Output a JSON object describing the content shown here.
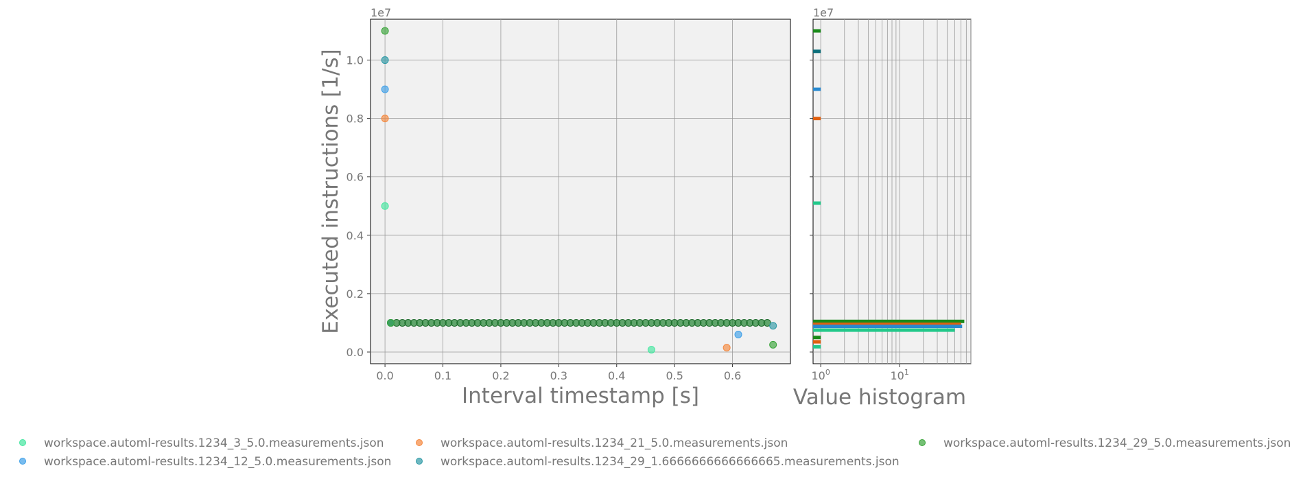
{
  "chart_data": [
    {
      "type": "scatter",
      "xlabel": "Interval timestamp [s]",
      "ylabel": "Executed instructions [1/s]",
      "y_multiplier_label": "1e7",
      "xlim": [
        -0.025,
        0.7
      ],
      "ylim": [
        -0.04,
        1.14
      ],
      "y_unit_scale": 10000000,
      "x_ticks": [
        "0.0",
        "0.1",
        "0.2",
        "0.3",
        "0.4",
        "0.5",
        "0.6"
      ],
      "y_ticks": [
        "0.0",
        "0.2",
        "0.4",
        "0.6",
        "0.8",
        "1.0"
      ],
      "grid": true,
      "legend": "bottom",
      "series": [
        {
          "name": "workspace.automl-results.1234_3_5.0.measurements.json",
          "color": "#45e6a0",
          "points": [
            [
              0.0,
              0.5
            ],
            [
              0.01,
              0.1
            ],
            [
              0.46,
              0.008
            ]
          ]
        },
        {
          "name": "workspace.automl-results.1234_21_5.0.measurements.json",
          "color": "#f5883e",
          "points": [
            [
              0.0,
              0.8
            ],
            [
              0.01,
              0.1
            ],
            [
              0.59,
              0.015
            ]
          ]
        },
        {
          "name": "workspace.automl-results.1234_12_5.0.measurements.json",
          "color": "#3fa0e8",
          "points": [
            [
              0.0,
              0.9
            ],
            [
              0.01,
              0.1
            ],
            [
              0.61,
              0.06
            ]
          ]
        },
        {
          "name": "workspace.automl-results.1234_29_1.6666666666666665.measurements.json",
          "color": "#2f9aa6",
          "points": [
            [
              0.0,
              1.0
            ],
            [
              0.01,
              0.1
            ],
            [
              0.67,
              0.09
            ]
          ]
        },
        {
          "name": "workspace.automl-results.1234_29_5.0.measurements.json",
          "color": "#3aa53a",
          "points": [
            [
              0.0,
              1.1
            ],
            [
              0.01,
              0.1
            ],
            [
              0.67,
              0.025
            ]
          ]
        }
      ],
      "constant_run": {
        "y": 0.1,
        "x_start": 0.01,
        "x_end": 0.66,
        "step": 0.01,
        "color": "#2e8b3e"
      }
    },
    {
      "type": "bar",
      "orientation": "horizontal",
      "xlabel": "Value histogram",
      "x_scale": "log",
      "x_ticks": [
        "10^0",
        "10^1"
      ],
      "y_multiplier_label": "1e7",
      "grid": true,
      "bars": [
        {
          "y": 1.1,
          "count": 1,
          "color": "#1a8a1a"
        },
        {
          "y": 1.03,
          "count": 1,
          "color": "#0d6f7a"
        },
        {
          "y": 0.9,
          "count": 1,
          "color": "#2a8ad0"
        },
        {
          "y": 0.8,
          "count": 1,
          "color": "#e06010"
        },
        {
          "y": 0.51,
          "count": 1,
          "color": "#22c88a"
        },
        {
          "y": 0.105,
          "count": 66,
          "color": "#1a8a1a"
        },
        {
          "y": 0.095,
          "count": 60,
          "color": "#e06010"
        },
        {
          "y": 0.088,
          "count": 62,
          "color": "#2a8ad0"
        },
        {
          "y": 0.075,
          "count": 50,
          "color": "#22c88a"
        },
        {
          "y": 0.05,
          "count": 1,
          "color": "#1a8a1a"
        },
        {
          "y": 0.035,
          "count": 1,
          "color": "#e06010"
        },
        {
          "y": 0.018,
          "count": 1,
          "color": "#22c88a"
        }
      ]
    }
  ],
  "legend_items": [
    {
      "label": "workspace.automl-results.1234_3_5.0.measurements.json",
      "color": "#45e6a0"
    },
    {
      "label": "workspace.automl-results.1234_12_5.0.measurements.json",
      "color": "#3fa0e8"
    },
    {
      "label": "workspace.automl-results.1234_21_5.0.measurements.json",
      "color": "#f5883e"
    },
    {
      "label": "workspace.automl-results.1234_29_1.6666666666666665.measurements.json",
      "color": "#2f9aa6"
    },
    {
      "label": "workspace.automl-results.1234_29_5.0.measurements.json",
      "color": "#3aa53a"
    }
  ]
}
